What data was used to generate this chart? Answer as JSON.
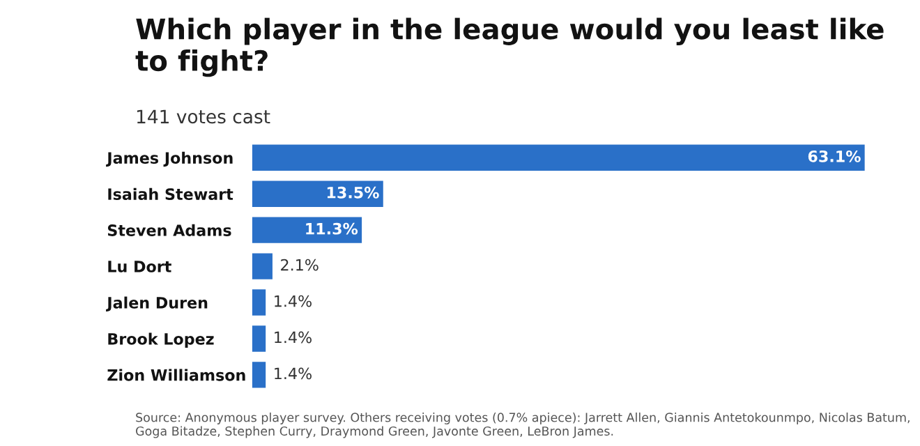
{
  "chart_data": {
    "type": "bar",
    "orientation": "horizontal",
    "title": "Which player in the league would you least like to fight?",
    "subtitle": "141 votes cast",
    "categories": [
      "James Johnson",
      "Isaiah Stewart",
      "Steven Adams",
      "Lu Dort",
      "Jalen Duren",
      "Brook Lopez",
      "Zion Williamson"
    ],
    "values": [
      63.1,
      13.5,
      11.3,
      2.1,
      1.4,
      1.4,
      1.4
    ],
    "value_labels": [
      "63.1%",
      "13.5%",
      "11.3%",
      "2.1%",
      "1.4%",
      "1.4%",
      "1.4%"
    ],
    "color": "#2a70c8",
    "annotations": [
      "Source: Anonymous player survey. Others receiving votes (0.7% apiece): Jarrett Allen, Giannis Antetokounmpo, Nicolas Batum, Goga Bitadze, Stephen Curry, Draymond Green, Javonte Green, LeBron James."
    ]
  }
}
